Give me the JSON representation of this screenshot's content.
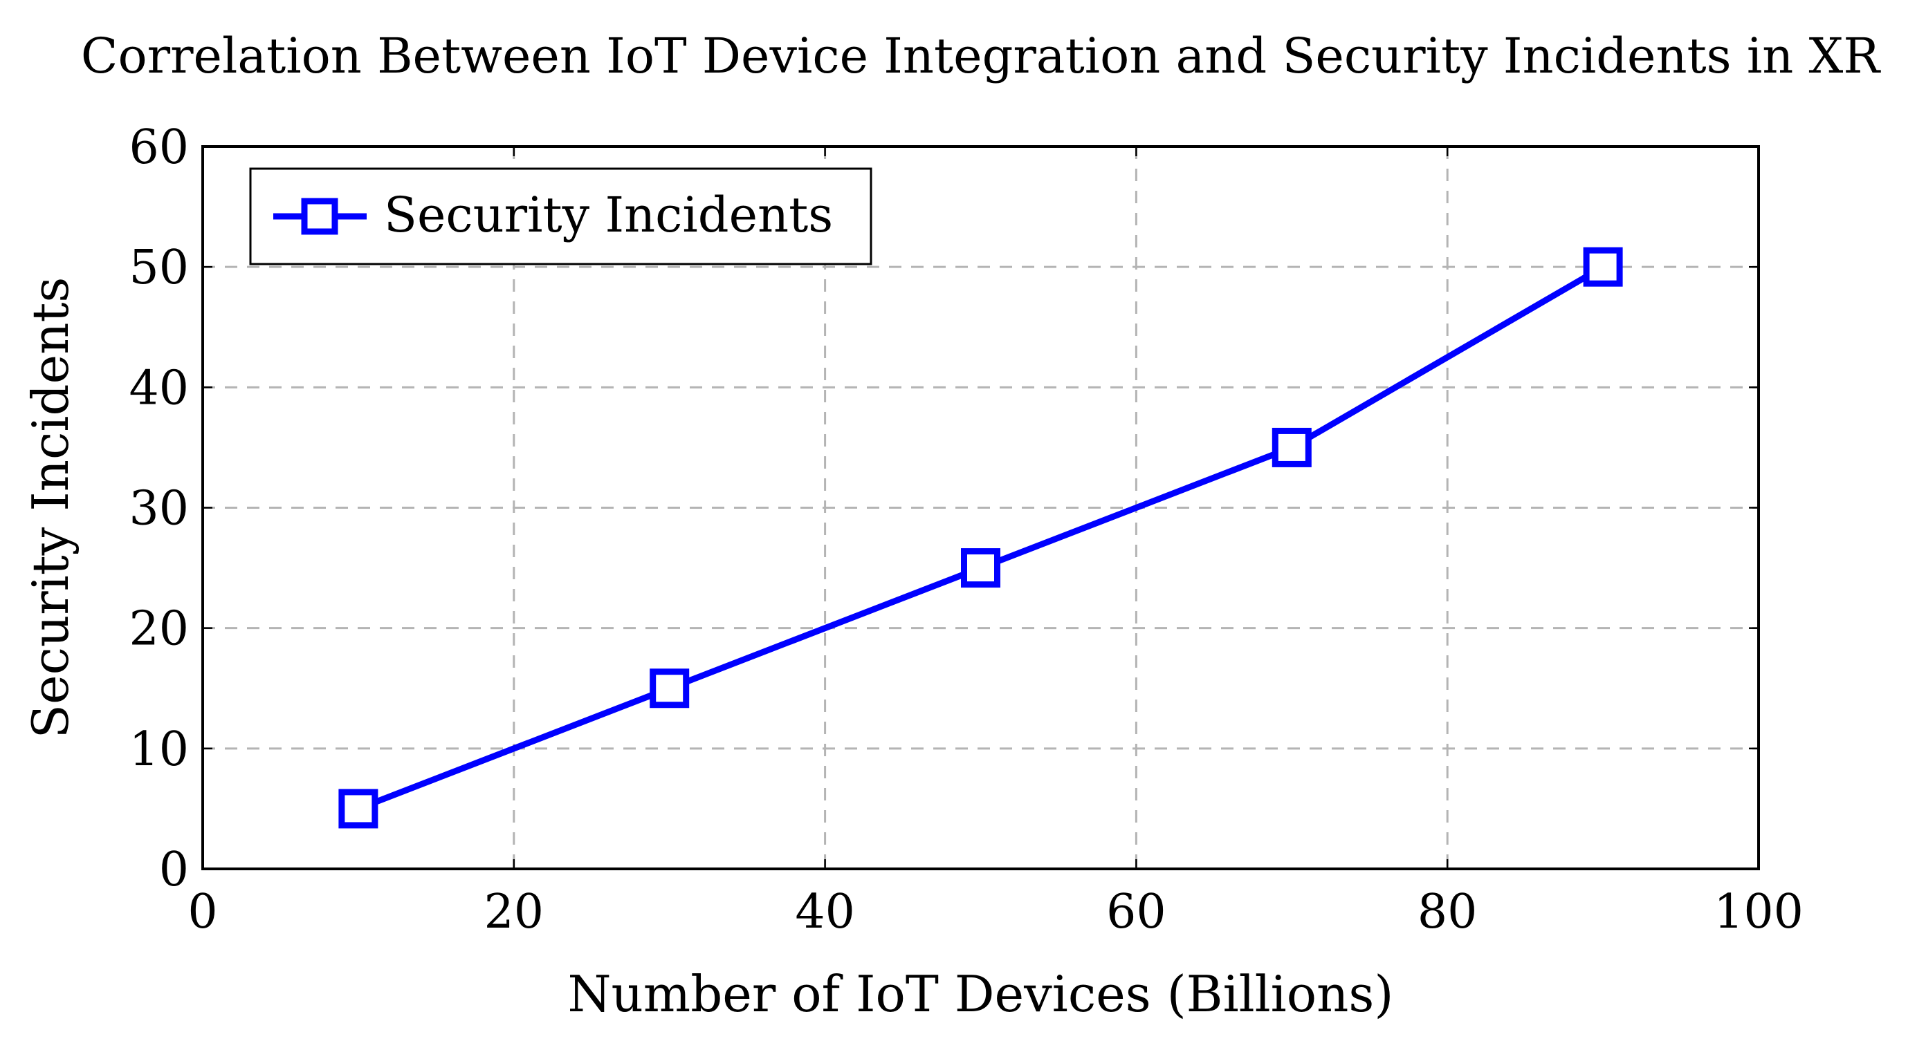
{
  "chart_data": {
    "type": "line",
    "title": "Correlation Between IoT Device Integration and Security Incidents in XR",
    "xlabel": "Number of IoT Devices (Billions)",
    "ylabel": "Security Incidents",
    "xlim": [
      0,
      100
    ],
    "ylim": [
      0,
      60
    ],
    "xticks": [
      0,
      20,
      40,
      60,
      80,
      100
    ],
    "yticks": [
      0,
      10,
      20,
      30,
      40,
      50,
      60
    ],
    "grid": true,
    "legend_position": "top-left",
    "series": [
      {
        "name": "Security Incidents",
        "color": "#0000ff",
        "marker": "square",
        "x": [
          10,
          30,
          50,
          70,
          90
        ],
        "values": [
          5,
          15,
          25,
          35,
          50
        ]
      }
    ]
  }
}
